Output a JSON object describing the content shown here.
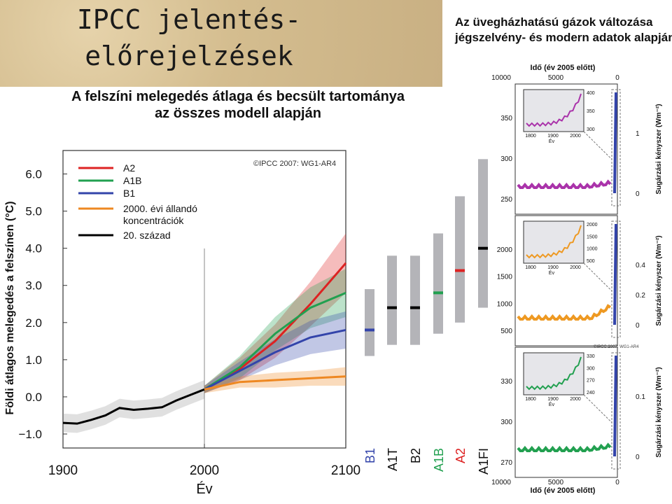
{
  "header": {
    "title_line1": "IPCC jelentés-",
    "title_line2": "előrejelzések"
  },
  "main_chart_title": {
    "line1": "A felszíni melegedés átlaga és becsült tartománya",
    "line2": "az összes modell alapján"
  },
  "right_panel_title": {
    "line1": "Az üvegházhatású gázok változása",
    "line2": "jégszelvény- és modern adatok alapján"
  },
  "chart_data": [
    {
      "type": "line",
      "xlabel": "Év",
      "ylabel": "Földi átlagos melegedés a felszínen (°C)",
      "xlim": [
        1900,
        2100
      ],
      "ylim": [
        -1.0,
        6.0
      ],
      "x_ticks": [
        "1900",
        "2000",
        "2100"
      ],
      "y_ticks": [
        "6.0",
        "5.0",
        "4.0",
        "3.0",
        "2.0",
        "1.0",
        "0.0",
        "−1.0"
      ],
      "copyright": "©IPCC 2007: WG1-AR4",
      "legend": [
        "A2",
        "A1B",
        "B1",
        "2000. évi állandó koncentrációk",
        "20. század"
      ],
      "series": [
        {
          "name": "20. század",
          "color": "#000000",
          "x": [
            1900,
            1910,
            1920,
            1930,
            1940,
            1950,
            1960,
            1970,
            1980,
            1990,
            2000
          ],
          "y": [
            -0.7,
            -0.72,
            -0.62,
            -0.5,
            -0.3,
            -0.35,
            -0.32,
            -0.28,
            -0.1,
            0.05,
            0.2
          ],
          "spread": 0.25
        },
        {
          "name": "A2",
          "color": "#dd2222",
          "x": [
            2000,
            2025,
            2050,
            2075,
            2100
          ],
          "y": [
            0.2,
            0.75,
            1.5,
            2.5,
            3.6
          ],
          "spread": [
            0.1,
            0.3,
            0.45,
            0.6,
            0.8
          ]
        },
        {
          "name": "A1B",
          "color": "#22a050",
          "x": [
            2000,
            2025,
            2050,
            2075,
            2100
          ],
          "y": [
            0.2,
            0.8,
            1.7,
            2.4,
            2.8
          ],
          "spread": [
            0.1,
            0.3,
            0.45,
            0.55,
            0.65
          ]
        },
        {
          "name": "B1",
          "color": "#3344aa",
          "x": [
            2000,
            2025,
            2050,
            2075,
            2100
          ],
          "y": [
            0.2,
            0.7,
            1.2,
            1.6,
            1.8
          ],
          "spread": [
            0.1,
            0.25,
            0.35,
            0.45,
            0.5
          ]
        },
        {
          "name": "2000. évi állandó koncentrációk",
          "color": "#ee8822",
          "x": [
            2000,
            2025,
            2050,
            2075,
            2100
          ],
          "y": [
            0.2,
            0.4,
            0.45,
            0.5,
            0.55
          ],
          "spread": [
            0.1,
            0.15,
            0.2,
            0.2,
            0.25
          ]
        }
      ],
      "scenario_bars": [
        {
          "label": "B1",
          "color": "#3344aa",
          "min": 1.1,
          "max": 2.9,
          "best": 1.8
        },
        {
          "label": "A1T",
          "color": "#000000",
          "min": 1.4,
          "max": 3.8,
          "best": 2.4
        },
        {
          "label": "B2",
          "color": "#000000",
          "min": 1.4,
          "max": 3.8,
          "best": 2.4
        },
        {
          "label": "A1B",
          "color": "#22a050",
          "min": 1.7,
          "max": 4.4,
          "best": 2.8
        },
        {
          "label": "A2",
          "color": "#dd2222",
          "min": 2.0,
          "max": 5.4,
          "best": 3.4
        },
        {
          "label": "A1FI",
          "color": "#000000",
          "min": 2.4,
          "max": 6.4,
          "best": 4.0
        }
      ]
    },
    {
      "type": "scatter",
      "top_axis_label": "Idő (év 2005 előtt)",
      "bottom_axis_label": "Idő (év 2005 előtt)",
      "x_ticks": [
        "10000",
        "5000",
        "0"
      ],
      "copyright": "©IPCC 2007: WG1-AR4",
      "panels": [
        {
          "left_ticks": [
            "350",
            "300",
            "250"
          ],
          "right_ticks": [
            "1",
            "0"
          ],
          "right_label": "Sugárzási kényszer (Wm⁻²)",
          "inset_x_ticks": [
            "1800",
            "1900",
            "2000"
          ],
          "inset_y_ticks": [
            "400",
            "350",
            "300"
          ],
          "inset_xlabel": "Év"
        },
        {
          "left_ticks": [
            "2000",
            "1500",
            "1000",
            "500"
          ],
          "right_ticks": [
            "0.4",
            "0.2",
            "0"
          ],
          "right_label": "Sugárzási kényszer (Wm⁻²)",
          "inset_x_ticks": [
            "1800",
            "1900",
            "2000"
          ],
          "inset_y_ticks": [
            "2000",
            "1500",
            "1000",
            "500"
          ],
          "inset_xlabel": "Év"
        },
        {
          "left_ticks": [
            "330",
            "300",
            "270"
          ],
          "right_ticks": [
            "0.1",
            "0"
          ],
          "right_label": "Sugárzási kényszer (Wm⁻²)",
          "inset_x_ticks": [
            "1800",
            "1900",
            "2000"
          ],
          "inset_y_ticks": [
            "330",
            "300",
            "270",
            "240"
          ],
          "inset_xlabel": "Év"
        }
      ]
    }
  ]
}
